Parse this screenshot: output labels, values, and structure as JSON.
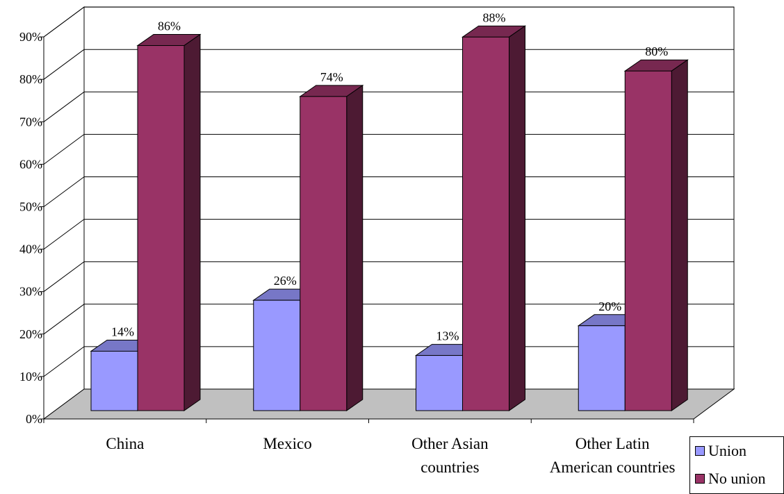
{
  "chart_data": {
    "type": "bar",
    "categories": [
      "China",
      "Mexico",
      "Other Asian countries",
      "Other Latin American countries"
    ],
    "category_lines": [
      [
        "China"
      ],
      [
        "Mexico"
      ],
      [
        "Other Asian",
        "countries"
      ],
      [
        "Other Latin",
        "American countries"
      ]
    ],
    "series": [
      {
        "name": "Union",
        "values": [
          14,
          26,
          13,
          20
        ],
        "labels": [
          "14%",
          "26%",
          "13%",
          "20%"
        ],
        "color": "#9999ff"
      },
      {
        "name": "No union",
        "values": [
          86,
          74,
          88,
          80
        ],
        "labels": [
          "86%",
          "74%",
          "88%",
          "80%"
        ],
        "color": "#993366"
      }
    ],
    "y_ticks": [
      "0%",
      "10%",
      "20%",
      "30%",
      "40%",
      "50%",
      "60%",
      "70%",
      "80%",
      "90%"
    ],
    "ylim": [
      0,
      90
    ],
    "grid": true,
    "three_d": true,
    "legend_position": "bottom-right",
    "colors": {
      "floor": "#c0c0c0",
      "grid": "#000000"
    }
  }
}
